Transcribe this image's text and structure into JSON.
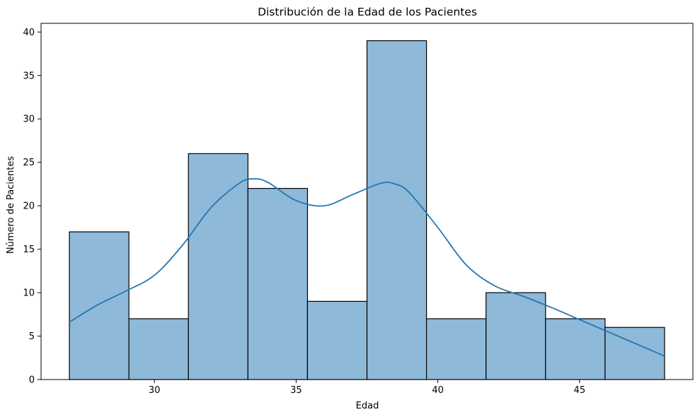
{
  "chart_data": {
    "type": "histogram",
    "title": "Distribución de la Edad de los Pacientes",
    "xlabel": "Edad",
    "ylabel": "Número de Pacientes",
    "xlim": [
      26.0,
      49.0
    ],
    "ylim": [
      0,
      41
    ],
    "xticks": [
      30,
      35,
      40,
      45
    ],
    "yticks": [
      0,
      5,
      10,
      15,
      20,
      25,
      30,
      35,
      40
    ],
    "grid": false,
    "bar_color": "#8fb9d9",
    "edge_color": "#000000",
    "kde_color": "#1f77b4",
    "bins": [
      {
        "start": 27.0,
        "end": 29.1,
        "count": 17
      },
      {
        "start": 29.1,
        "end": 31.2,
        "count": 7
      },
      {
        "start": 31.2,
        "end": 33.3,
        "count": 26
      },
      {
        "start": 33.3,
        "end": 35.4,
        "count": 22
      },
      {
        "start": 35.4,
        "end": 37.5,
        "count": 9
      },
      {
        "start": 37.5,
        "end": 39.6,
        "count": 39
      },
      {
        "start": 39.6,
        "end": 41.7,
        "count": 7
      },
      {
        "start": 41.7,
        "end": 43.8,
        "count": 10
      },
      {
        "start": 43.8,
        "end": 45.9,
        "count": 7
      },
      {
        "start": 45.9,
        "end": 48.0,
        "count": 6
      }
    ],
    "kde": {
      "x": [
        27.0,
        28.0,
        29.0,
        30.0,
        31.0,
        32.0,
        33.0,
        33.5,
        34.0,
        35.0,
        36.0,
        37.0,
        38.0,
        38.5,
        39.0,
        40.0,
        41.0,
        42.0,
        43.0,
        44.0,
        45.0,
        46.0,
        47.0,
        48.0
      ],
      "y": [
        6.6,
        8.6,
        10.2,
        12.0,
        15.5,
        19.8,
        22.6,
        23.1,
        22.7,
        20.6,
        20.0,
        21.3,
        22.6,
        22.5,
        21.5,
        17.5,
        13.2,
        10.8,
        9.6,
        8.3,
        6.9,
        5.5,
        4.1,
        2.7
      ]
    }
  }
}
